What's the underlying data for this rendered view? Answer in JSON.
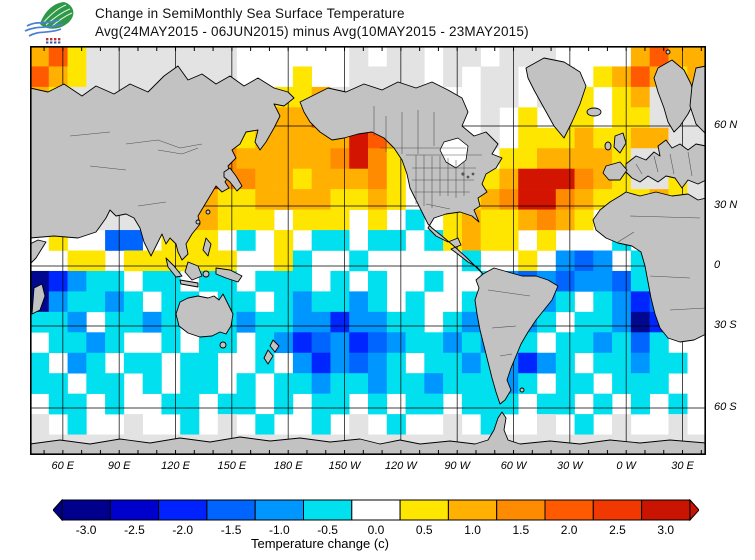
{
  "header": {
    "title_line1": "Change in SemiMonthly Sea Surface Temperature",
    "title_line2": "Avg(24MAY2015 - 06JUN2015) minus Avg(10MAY2015 - 23MAY2015)"
  },
  "map": {
    "x_axis": {
      "labels": [
        "60 E",
        "90 E",
        "120 E",
        "150 E",
        "180 E",
        "150 W",
        "120 W",
        "90 W",
        "60 W",
        "30 W",
        "0 W",
        "30 E"
      ],
      "fracs": [
        0.0486,
        0.1319,
        0.2153,
        0.2986,
        0.3819,
        0.4653,
        0.5486,
        0.6319,
        0.7153,
        0.7986,
        0.8819,
        0.9653
      ]
    },
    "y_axis": {
      "labels": [
        "60 N",
        "30 N",
        "0",
        "30 S",
        "60 S"
      ],
      "fracs": [
        0.1956,
        0.3912,
        0.5379,
        0.6846,
        0.8851
      ]
    },
    "minor_tick_count": 36,
    "land_color": "#C2C2C2",
    "coast_color": "#000000",
    "nodata_color": "#E3E3E3",
    "palette": {
      "w": "#FFFFFF",
      "g": "#E3E3E3",
      "y": "#FFE600",
      "o": "#FFB000",
      "O": "#FF8C00",
      "r": "#FF5A00",
      "R": "#D31400",
      "c": "#00E0EE",
      "a": "#0096FF",
      "b": "#0064FF",
      "B": "#0026FF",
      "n": "#000890"
    },
    "field": [
      "oryggggggggwwwwwwgwggwggwgggwwwworoo",
      "royggggggggwwwywwggggwgwggwggwyoroyo",
      "oygggggggggwwyyoggggggwwggwgwywyoggy",
      "gggggggggggyyoorogggggwwgwywyywyyggg",
      "gggggggggooyoooooRrogggwgwyyyoyyoogg",
      "ggggggggrROoooooOROyggggwyyooooygggg",
      "ggggggggRROOooyoooOywgggyoRRROoyggyg",
      "gggggggyOoyyooooyyoywggyoORROoyyyoyg",
      "ywggggyyooyyywyyywywcwyoyyoOoywwyyog",
      "wywwbbwyyywcwywccwccwcyoyywywwwcwywg",
      "wwyywyyyyyywwycwwcwwwwwcwwywabawcyww",
      "nBaccwccwccwcccwcwcwwcwwcababaabccbw",
      "naccacwccwccwcaccacwcwwcwccacwcaBbcw",
      "ccawccacwwcaccaaBaaccwcaccacwccanByw",
      "wccacwwcwccwcaBbaBbaccacaccwccacbcww",
      "cwacwccwccwwcwaBabacwccacaBacwccaccw",
      "ccwccwcwccwcwccaccaccacccacwccwcccww",
      "wccwcwwccwccwcwccwcwccwcccwccwcwcwcw",
      "gwcwwgwwcwgwcwwcwgwcwwgwcwwgwcwgwwgw",
      "gggggggggggggggggggggggggggggggggggg"
    ]
  },
  "colorbar": {
    "labels": [
      "-3.0",
      "-2.5",
      "-2.0",
      "-1.5",
      "-1.0",
      "-0.5",
      "0.0",
      "0.5",
      "1.0",
      "1.5",
      "2.0",
      "2.5",
      "3.0"
    ],
    "colors": [
      "#00008C",
      "#0000CD",
      "#0022FF",
      "#0064FF",
      "#0096FF",
      "#00E0EE",
      "#FFFFFF",
      "#FFE600",
      "#FFB000",
      "#FF8C00",
      "#FF5A00",
      "#F03800",
      "#C81400"
    ],
    "left_arrow_color": "#00008C",
    "right_arrow_color": "#C81400",
    "caption": "Temperature change  (c)"
  }
}
